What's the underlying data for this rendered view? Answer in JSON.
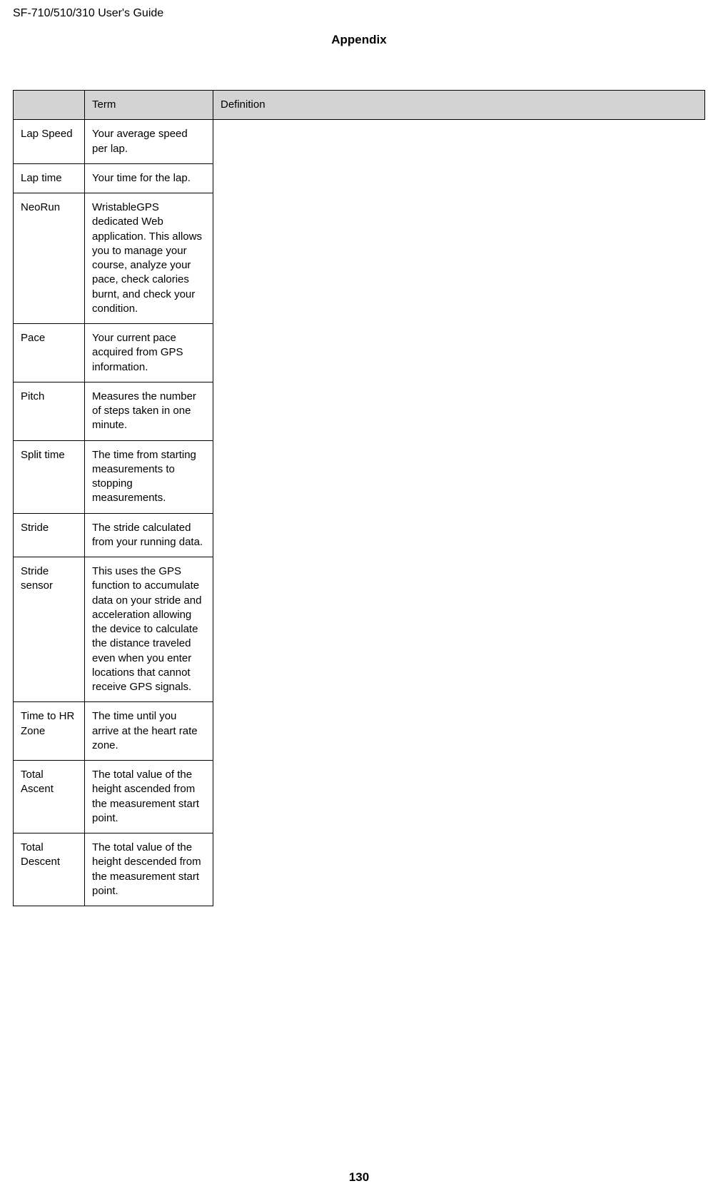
{
  "header": "SF-710/510/310     User's Guide",
  "section_title": "Appendix",
  "page_number": "130",
  "columns": {
    "c0": "",
    "c1": "Term",
    "c2": "Definition"
  },
  "rows": [
    {
      "term": "Lap Speed",
      "def": "Your average speed per lap."
    },
    {
      "term": "Lap time",
      "def": "Your time for the lap."
    },
    {
      "term": "NeoRun",
      "def": "WristableGPS dedicated Web application. This allows you to manage your course, analyze your pace, check calories burnt, and check your condition."
    },
    {
      "term": "Pace",
      "def": "Your current pace acquired from GPS information."
    },
    {
      "term": "Pitch",
      "def": "Measures the number of steps taken in one minute."
    },
    {
      "term": "Split time",
      "def": "The time from starting measurements to stopping measurements."
    },
    {
      "term": "Stride",
      "def": "The stride calculated from your running data."
    },
    {
      "term": "Stride sensor",
      "def": "This uses the GPS function to accumulate data on your stride and acceleration allowing the device to calculate the distance traveled even when you enter locations that cannot receive GPS signals."
    },
    {
      "term": "Time to HR Zone",
      "def": "The time until you arrive at the heart rate zone."
    },
    {
      "term": "Total Ascent",
      "def": "The total value of the height ascended from the measurement start point."
    },
    {
      "term": "Total Descent",
      "def": "The total value of the height descended from the measurement start point."
    }
  ]
}
